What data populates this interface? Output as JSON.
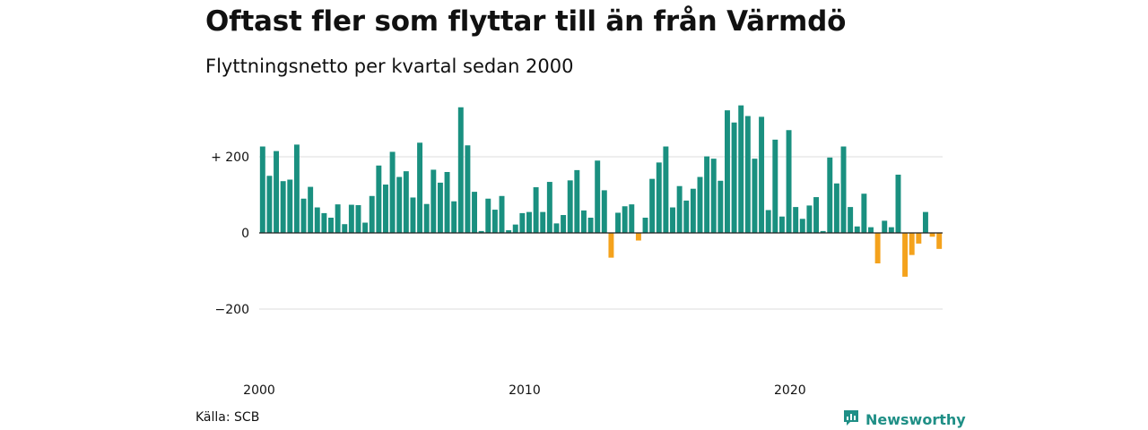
{
  "title": "Oftast fler som flyttar till än från Värmdö",
  "subtitle": "Flyttningsnetto per kvartal sedan 2000",
  "source": "Källa: SCB",
  "brand": {
    "name": "Newsworthy",
    "icon": "newsworthy-logo-icon"
  },
  "colors": {
    "positive": "#1a9080",
    "negative": "#f4a21c",
    "grid": "#dddddd",
    "axis": "#222222"
  },
  "chart_data": {
    "type": "bar",
    "title": "Oftast fler som flyttar till än från Värmdö",
    "subtitle": "Flyttningsnetto per kvartal sedan 2000",
    "xlabel": "",
    "ylabel": "",
    "ylim": [
      -300,
      340
    ],
    "xlim": [
      2000,
      2025.75
    ],
    "grid": true,
    "yticks": [
      -200,
      0,
      200
    ],
    "ytick_labels": [
      "−200",
      "0",
      "+ 200"
    ],
    "xticks": [
      2000,
      2010,
      2020
    ],
    "xtick_labels": [
      "2000",
      "2010",
      "2020"
    ],
    "start_year": 2000,
    "values": [
      227,
      150,
      215,
      136,
      140,
      232,
      90,
      121,
      67,
      52,
      40,
      75,
      23,
      74,
      73,
      27,
      97,
      177,
      127,
      213,
      147,
      162,
      93,
      237,
      76,
      166,
      132,
      160,
      83,
      330,
      230,
      108,
      5,
      90,
      61,
      97,
      7,
      22,
      52,
      55,
      120,
      55,
      134,
      25,
      47,
      138,
      165,
      59,
      40,
      190,
      112,
      -65,
      53,
      70,
      75,
      -20,
      40,
      142,
      185,
      227,
      67,
      123,
      85,
      116,
      147,
      201,
      195,
      137,
      322,
      290,
      335,
      307,
      195,
      305,
      60,
      245,
      43,
      270,
      68,
      37,
      72,
      94,
      5,
      198,
      130,
      227,
      68,
      17,
      103,
      15,
      -80,
      32,
      15,
      153,
      -115,
      -58,
      -28,
      55,
      -10,
      -42
    ]
  }
}
